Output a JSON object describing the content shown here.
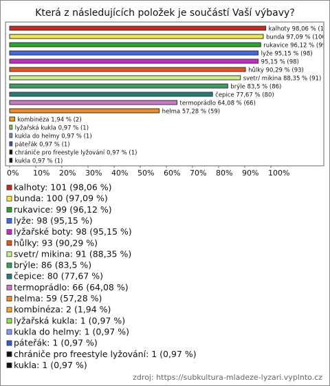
{
  "chart_data": {
    "type": "bar",
    "orientation": "horizontal",
    "title": "Která z následujících položek je součástí Vaší výbavy?",
    "categories": [
      "kalhoty",
      "bunda",
      "rukavice",
      "lyže",
      "lyžařské boty",
      "hůlky",
      "svetr/ mikina",
      "brýle",
      "čepice",
      "termoprádlo",
      "helma",
      "kombinéza",
      "lyžařská kukla",
      "kukla do helmy",
      "páteřák",
      "chrániče pro freestyle lyžování",
      "kukla"
    ],
    "values": [
      98.06,
      97.09,
      96.12,
      95.15,
      95.15,
      90.29,
      88.35,
      83.5,
      77.67,
      64.08,
      57.28,
      1.94,
      0.97,
      0.97,
      0.97,
      0.97,
      0.97
    ],
    "value_labels": [
      "kalhoty 98,06 % (101)",
      "bunda 97,09 % (100)",
      "rukavice 96,12 % (99)",
      "lyže 95,15 % (98)",
      "95,15 % (98)",
      "hůlky 90,29 % (93)",
      "svetr/ mikina 88,35 % (91)",
      "brýle 83,5 % (86)",
      "čepice 77,67 % (80)",
      "termoprádlo 64,08 % (66)",
      "helma 57,28 % (59)",
      "kombinéza 1,94 % (2)",
      "lyžařská kukla 0,97 % (1)",
      "kukla do helmy 0,97 % (1)",
      "páteřák 0,97 % (1)",
      "chrániče pro freestyle lyžování 0,97 % (1)",
      "kukla 0,97 % (1)"
    ],
    "colors": [
      "#c8281e",
      "#f2e64a",
      "#2aa52a",
      "#4a66dc",
      "#c42cc8",
      "#e05522",
      "#c9f08a",
      "#36a060",
      "#2a7a7a",
      "#c87ac8",
      "#ee8a2a",
      "#f0a828",
      "#8ee04c",
      "#7f9cee",
      "#3858c8",
      "#111111",
      "#111111"
    ],
    "legend_labels": [
      "kalhoty: 101 (98,06 %)",
      "bunda: 100 (97,09 %)",
      "rukavice: 99 (96,12 %)",
      "lyže: 98 (95,15 %)",
      "lyžařské boty: 98 (95,15 %)",
      "hůlky: 93 (90,29 %)",
      "svetr/ mikina: 91 (88,35 %)",
      "brýle: 86 (83,5 %)",
      "čepice: 80 (77,67 %)",
      "termoprádlo: 66 (64,08 %)",
      "helma: 59 (57,28 %)",
      "kombinéza: 2 (1,94 %)",
      "lyžařská kukla: 1 (0,97 %)",
      "kukla do helmy: 1 (0,97 %)",
      "páteřák: 1 (0,97 %)",
      "chrániče pro freestyle lyžování: 1 (0,97 %)",
      "kukla: 1 (0,97 %)"
    ],
    "xlim": [
      0,
      100
    ],
    "xticks": [
      {
        "value": 0,
        "label": "0%"
      },
      {
        "value": 10,
        "label": "10%"
      },
      {
        "value": 20,
        "label": "20%"
      },
      {
        "value": 30,
        "label": "30%"
      },
      {
        "value": 40,
        "label": "40%"
      },
      {
        "value": 50,
        "label": "50%"
      },
      {
        "value": 60,
        "label": "60%"
      },
      {
        "value": 70,
        "label": "70%"
      },
      {
        "value": 80,
        "label": "80%"
      },
      {
        "value": 90,
        "label": "90%"
      },
      {
        "value": 100,
        "label": "100%"
      }
    ],
    "source": "zdroj: https://subkultura-mladeze-lyzari.vyplnto.cz"
  }
}
